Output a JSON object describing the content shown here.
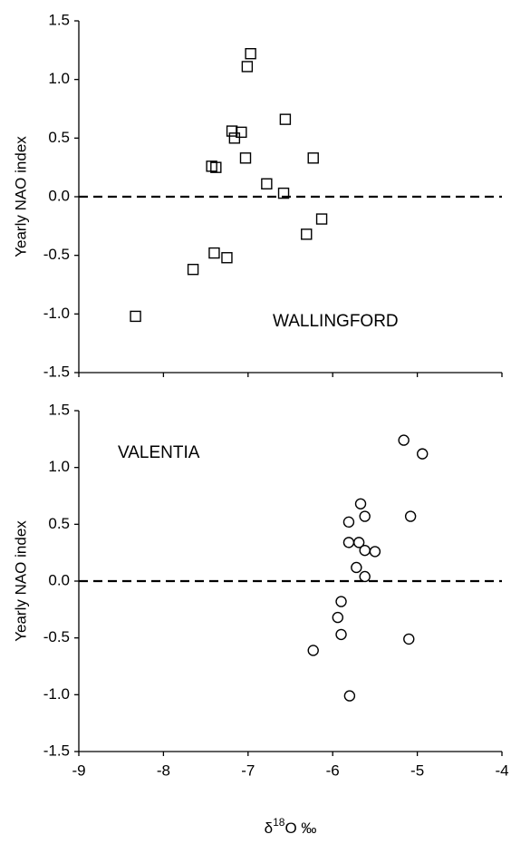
{
  "chart_data": [
    {
      "type": "scatter",
      "ylabel": "Yearly NAO index",
      "annotation": "WALLINGFORD",
      "annotation_corner": "bottom-right",
      "xlim": [
        -9,
        -4
      ],
      "xticks": [
        -9,
        -8,
        -7,
        -6,
        -5,
        -4
      ],
      "show_xtick_labels": false,
      "ylim": [
        -1.5,
        1.5
      ],
      "yticks": [
        -1.5,
        {
          "value": -1,
          "label": "-1.0"
        },
        -0.5,
        {
          "value": 0,
          "label": "0.0"
        },
        0.5,
        {
          "value": 1,
          "label": "1.0"
        },
        1.5
      ],
      "reference_line": 0,
      "series": [
        {
          "marker": "square",
          "color": "#000000",
          "x": [
            -8.33,
            -7.65,
            -7.4,
            -7.25,
            -7.43,
            -7.38,
            -7.01,
            -6.97,
            -7.19,
            -7.08,
            -7.16,
            -7.03,
            -6.56,
            -6.78,
            -6.58,
            -6.23,
            -6.31,
            -6.13
          ],
          "values": [
            -1.02,
            -0.62,
            -0.48,
            -0.52,
            0.26,
            0.25,
            1.11,
            1.22,
            0.56,
            0.55,
            0.5,
            0.33,
            0.66,
            0.11,
            0.03,
            0.33,
            -0.32,
            -0.19
          ]
        }
      ]
    },
    {
      "type": "scatter",
      "ylabel": "Yearly NAO index",
      "annotation": "VALENTIA",
      "annotation_corner": "top-left",
      "xlabel": {
        "base": "δ",
        "superscript": "18",
        "rest": "O ‰"
      },
      "xlim": [
        -9,
        -4
      ],
      "xticks": [
        -9,
        -8,
        -7,
        -6,
        -5,
        -4
      ],
      "show_xtick_labels": true,
      "ylim": [
        -1.5,
        1.5
      ],
      "yticks": [
        -1.5,
        {
          "value": -1,
          "label": "-1.0"
        },
        -0.5,
        {
          "value": 0,
          "label": "0.0"
        },
        0.5,
        {
          "value": 1,
          "label": "1.0"
        },
        1.5
      ],
      "reference_line": 0,
      "series": [
        {
          "marker": "circle",
          "color": "#000000",
          "x": [
            -5.16,
            -4.94,
            -5.67,
            -5.62,
            -5.08,
            -5.81,
            -5.81,
            -5.69,
            -5.62,
            -5.5,
            -5.72,
            -5.62,
            -5.9,
            -5.94,
            -5.9,
            -6.23,
            -5.1,
            -5.8
          ],
          "values": [
            1.24,
            1.12,
            0.68,
            0.57,
            0.57,
            0.52,
            0.34,
            0.34,
            0.27,
            0.26,
            0.12,
            0.04,
            -0.18,
            -0.32,
            -0.47,
            -0.61,
            -0.51,
            -1.01
          ]
        }
      ]
    }
  ]
}
